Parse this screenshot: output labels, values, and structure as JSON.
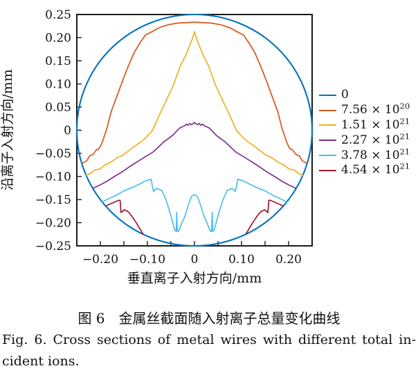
{
  "axes": {
    "x": {
      "label": "垂直离子入射方向/mm",
      "tick_labels": [
        "−0.20",
        "−0.10",
        "0",
        "0.10",
        "0.20"
      ],
      "tick_label_values": [
        -0.2,
        -0.1,
        0,
        0.1,
        0.2
      ],
      "tick_marks": [
        -0.2,
        -0.15,
        -0.1,
        -0.05,
        0,
        0.05,
        0.1,
        0.15,
        0.2
      ],
      "range": [
        -0.25,
        0.25
      ]
    },
    "y": {
      "label": "沿离子入射方向/mm",
      "tick_labels": [
        "0.25",
        "0.20",
        "0.15",
        "0.10",
        "0.05",
        "0",
        "−0.05",
        "−0.10",
        "−0.15",
        "−0.20",
        "−0.25"
      ],
      "tick_label_values": [
        0.25,
        0.2,
        0.15,
        0.1,
        0.05,
        0,
        -0.05,
        -0.1,
        -0.15,
        -0.2,
        -0.25
      ],
      "tick_marks": [
        -0.2,
        -0.15,
        -0.1,
        -0.05,
        0,
        0.05,
        0.1,
        0.15,
        0.2
      ],
      "range": [
        -0.25,
        0.25
      ]
    }
  },
  "legend": {
    "position": "right",
    "items": [
      {
        "base": "0",
        "exp": "",
        "color": "#0072BD"
      },
      {
        "base": "7.56 × 10",
        "exp": "20",
        "color": "#D95319"
      },
      {
        "base": "1.51 × 10",
        "exp": "21",
        "color": "#EDB120"
      },
      {
        "base": "2.27 × 10",
        "exp": "21",
        "color": "#7E2F8E"
      },
      {
        "base": "3.78 × 10",
        "exp": "21",
        "color": "#4DBEEE"
      },
      {
        "base": "4.54 × 10",
        "exp": "21",
        "color": "#A2142F"
      }
    ]
  },
  "caption": {
    "zh": "图 6　金属丝截面随入射离子总量变化曲线",
    "en_line1": "Fig. 6. Cross sections of metal wires with different total in-",
    "en_line2": "cident ions."
  },
  "chart_data": {
    "type": "line",
    "title": "",
    "xlabel": "垂直离子入射方向/mm",
    "ylabel": "沿离子入射方向/mm",
    "xlim": [
      -0.25,
      0.25
    ],
    "ylim": [
      -0.25,
      0.25
    ],
    "grid": false,
    "legend_position": "right of plot",
    "series": [
      {
        "name": "0",
        "color": "#0072BD",
        "shape": "circle",
        "center": [
          0,
          0
        ],
        "radius": 0.25
      },
      {
        "name": "7.56×10^20",
        "color": "#D95319",
        "points": [
          [
            -0.239,
            -0.072
          ],
          [
            -0.229,
            -0.066
          ],
          [
            -0.223,
            -0.056
          ],
          [
            -0.215,
            -0.052
          ],
          [
            -0.209,
            -0.043
          ],
          [
            -0.203,
            -0.04
          ],
          [
            -0.197,
            -0.029
          ],
          [
            -0.194,
            -0.02
          ],
          [
            -0.186,
            0.004
          ],
          [
            -0.177,
            0.04
          ],
          [
            -0.165,
            0.073
          ],
          [
            -0.152,
            0.109
          ],
          [
            -0.14,
            0.14
          ],
          [
            -0.128,
            0.168
          ],
          [
            -0.115,
            0.19
          ],
          [
            -0.104,
            0.2055
          ],
          [
            -0.09,
            0.213
          ],
          [
            -0.075,
            0.2215
          ],
          [
            -0.055,
            0.228
          ],
          [
            -0.035,
            0.2315
          ],
          [
            0,
            0.2335
          ],
          [
            0.035,
            0.2315
          ],
          [
            0.055,
            0.228
          ],
          [
            0.075,
            0.2215
          ],
          [
            0.09,
            0.213
          ],
          [
            0.104,
            0.2055
          ],
          [
            0.115,
            0.19
          ],
          [
            0.128,
            0.168
          ],
          [
            0.14,
            0.14
          ],
          [
            0.152,
            0.109
          ],
          [
            0.165,
            0.073
          ],
          [
            0.177,
            0.04
          ],
          [
            0.186,
            0.004
          ],
          [
            0.194,
            -0.02
          ],
          [
            0.197,
            -0.029
          ],
          [
            0.203,
            -0.04
          ],
          [
            0.209,
            -0.043
          ],
          [
            0.215,
            -0.052
          ],
          [
            0.223,
            -0.056
          ],
          [
            0.229,
            -0.066
          ],
          [
            0.239,
            -0.072
          ]
        ]
      },
      {
        "name": "1.51×10^21",
        "color": "#EDB120",
        "points": [
          [
            -0.23,
            -0.098
          ],
          [
            -0.219,
            -0.092
          ],
          [
            -0.212,
            -0.086
          ],
          [
            -0.201,
            -0.084
          ],
          [
            -0.19,
            -0.075
          ],
          [
            -0.177,
            -0.069
          ],
          [
            -0.165,
            -0.06
          ],
          [
            -0.152,
            -0.054
          ],
          [
            -0.14,
            -0.045
          ],
          [
            -0.128,
            -0.035
          ],
          [
            -0.116,
            -0.027
          ],
          [
            -0.104,
            -0.017
          ],
          [
            -0.089,
            0.0
          ],
          [
            -0.074,
            0.034
          ],
          [
            -0.06,
            0.064
          ],
          [
            -0.045,
            0.097
          ],
          [
            -0.03,
            0.139
          ],
          [
            -0.018,
            0.163
          ],
          [
            -0.009,
            0.186
          ],
          [
            -0.004,
            0.199
          ],
          [
            0,
            0.213
          ],
          [
            0.004,
            0.199
          ],
          [
            0.009,
            0.186
          ],
          [
            0.018,
            0.163
          ],
          [
            0.03,
            0.139
          ],
          [
            0.045,
            0.097
          ],
          [
            0.06,
            0.064
          ],
          [
            0.074,
            0.034
          ],
          [
            0.089,
            0.0
          ],
          [
            0.104,
            -0.017
          ],
          [
            0.116,
            -0.027
          ],
          [
            0.128,
            -0.035
          ],
          [
            0.14,
            -0.045
          ],
          [
            0.152,
            -0.054
          ],
          [
            0.165,
            -0.06
          ],
          [
            0.177,
            -0.069
          ],
          [
            0.19,
            -0.075
          ],
          [
            0.201,
            -0.084
          ],
          [
            0.212,
            -0.086
          ],
          [
            0.219,
            -0.092
          ],
          [
            0.23,
            -0.098
          ]
        ]
      },
      {
        "name": "2.27×10^21",
        "color": "#7E2F8E",
        "points": [
          [
            -0.216,
            -0.126
          ],
          [
            -0.2,
            -0.118
          ],
          [
            -0.187,
            -0.111
          ],
          [
            -0.17,
            -0.1
          ],
          [
            -0.152,
            -0.089
          ],
          [
            -0.135,
            -0.077
          ],
          [
            -0.118,
            -0.066
          ],
          [
            -0.104,
            -0.057
          ],
          [
            -0.089,
            -0.048
          ],
          [
            -0.076,
            -0.036
          ],
          [
            -0.065,
            -0.025
          ],
          [
            -0.054,
            -0.017
          ],
          [
            -0.045,
            -0.01
          ],
          [
            -0.038,
            -0.002
          ],
          [
            -0.031,
            0.005
          ],
          [
            -0.021,
            0.0095
          ],
          [
            -0.017,
            0.013
          ],
          [
            -0.014,
            0.0105
          ],
          [
            -0.01,
            0.0145
          ],
          [
            -0.007,
            0.012
          ],
          [
            -0.004,
            0.0135
          ],
          [
            0,
            0.0165
          ],
          [
            0.004,
            0.0135
          ],
          [
            0.007,
            0.012
          ],
          [
            0.01,
            0.0145
          ],
          [
            0.014,
            0.0105
          ],
          [
            0.017,
            0.013
          ],
          [
            0.021,
            0.0095
          ],
          [
            0.031,
            0.005
          ],
          [
            0.038,
            -0.002
          ],
          [
            0.045,
            -0.01
          ],
          [
            0.054,
            -0.017
          ],
          [
            0.065,
            -0.025
          ],
          [
            0.076,
            -0.036
          ],
          [
            0.089,
            -0.048
          ],
          [
            0.104,
            -0.057
          ],
          [
            0.118,
            -0.066
          ],
          [
            0.135,
            -0.077
          ],
          [
            0.152,
            -0.089
          ],
          [
            0.17,
            -0.1
          ],
          [
            0.187,
            -0.111
          ],
          [
            0.2,
            -0.118
          ],
          [
            0.216,
            -0.126
          ]
        ]
      },
      {
        "name": "3.78×10^21",
        "color": "#4DBEEE",
        "points": [
          [
            -0.196,
            -0.155
          ],
          [
            -0.18,
            -0.147
          ],
          [
            -0.165,
            -0.14
          ],
          [
            -0.15,
            -0.131
          ],
          [
            -0.135,
            -0.125
          ],
          [
            -0.12,
            -0.118
          ],
          [
            -0.105,
            -0.11
          ],
          [
            -0.092,
            -0.106
          ],
          [
            -0.0885,
            -0.126
          ],
          [
            -0.0867,
            -0.133
          ],
          [
            -0.0839,
            -0.1285
          ],
          [
            -0.0794,
            -0.126
          ],
          [
            -0.0746,
            -0.128
          ],
          [
            -0.0697,
            -0.13
          ],
          [
            -0.065,
            -0.14
          ],
          [
            -0.06,
            -0.152
          ],
          [
            -0.05,
            -0.185
          ],
          [
            -0.044,
            -0.208
          ],
          [
            -0.0414,
            -0.217
          ],
          [
            -0.0388,
            -0.2185
          ],
          [
            -0.0376,
            -0.177
          ],
          [
            -0.0364,
            -0.2185
          ],
          [
            -0.0341,
            -0.219
          ],
          [
            -0.03,
            -0.209
          ],
          [
            -0.025,
            -0.196
          ],
          [
            -0.0209,
            -0.188
          ],
          [
            -0.015,
            -0.168
          ],
          [
            -0.0113,
            -0.157
          ],
          [
            -0.006,
            -0.143
          ],
          [
            0,
            -0.139
          ],
          [
            0.006,
            -0.143
          ],
          [
            0.0113,
            -0.157
          ],
          [
            0.015,
            -0.168
          ],
          [
            0.0209,
            -0.188
          ],
          [
            0.025,
            -0.196
          ],
          [
            0.03,
            -0.209
          ],
          [
            0.0341,
            -0.219
          ],
          [
            0.0364,
            -0.2185
          ],
          [
            0.0376,
            -0.177
          ],
          [
            0.0388,
            -0.2185
          ],
          [
            0.0414,
            -0.217
          ],
          [
            0.044,
            -0.208
          ],
          [
            0.05,
            -0.185
          ],
          [
            0.06,
            -0.152
          ],
          [
            0.065,
            -0.14
          ],
          [
            0.0697,
            -0.13
          ],
          [
            0.0746,
            -0.128
          ],
          [
            0.0794,
            -0.126
          ],
          [
            0.0839,
            -0.1285
          ],
          [
            0.0867,
            -0.133
          ],
          [
            0.0885,
            -0.126
          ],
          [
            0.092,
            -0.106
          ],
          [
            0.105,
            -0.11
          ],
          [
            0.12,
            -0.118
          ],
          [
            0.135,
            -0.125
          ],
          [
            0.15,
            -0.131
          ],
          [
            0.165,
            -0.14
          ],
          [
            0.18,
            -0.147
          ],
          [
            0.196,
            -0.155
          ]
        ]
      },
      {
        "name": "4.54×10^21",
        "color": "#A2142F",
        "segments": [
          [
            [
              -0.189,
              -0.164
            ],
            [
              -0.176,
              -0.158
            ],
            [
              -0.161,
              -0.1515
            ],
            [
              -0.158,
              -0.152
            ],
            [
              -0.157,
              -0.165
            ],
            [
              -0.156,
              -0.178
            ],
            [
              -0.149,
              -0.172
            ],
            [
              -0.144,
              -0.1745
            ],
            [
              -0.14,
              -0.177
            ],
            [
              -0.133,
              -0.186
            ],
            [
              -0.125,
              -0.198
            ],
            [
              -0.117,
              -0.211
            ],
            [
              -0.109,
              -0.225
            ]
          ],
          [
            [
              0.109,
              -0.225
            ],
            [
              0.117,
              -0.211
            ],
            [
              0.125,
              -0.198
            ],
            [
              0.133,
              -0.186
            ],
            [
              0.14,
              -0.177
            ],
            [
              0.144,
              -0.1745
            ],
            [
              0.149,
              -0.172
            ],
            [
              0.156,
              -0.178
            ],
            [
              0.157,
              -0.165
            ],
            [
              0.158,
              -0.152
            ],
            [
              0.161,
              -0.1515
            ],
            [
              0.176,
              -0.158
            ],
            [
              0.189,
              -0.164
            ]
          ]
        ]
      }
    ]
  }
}
